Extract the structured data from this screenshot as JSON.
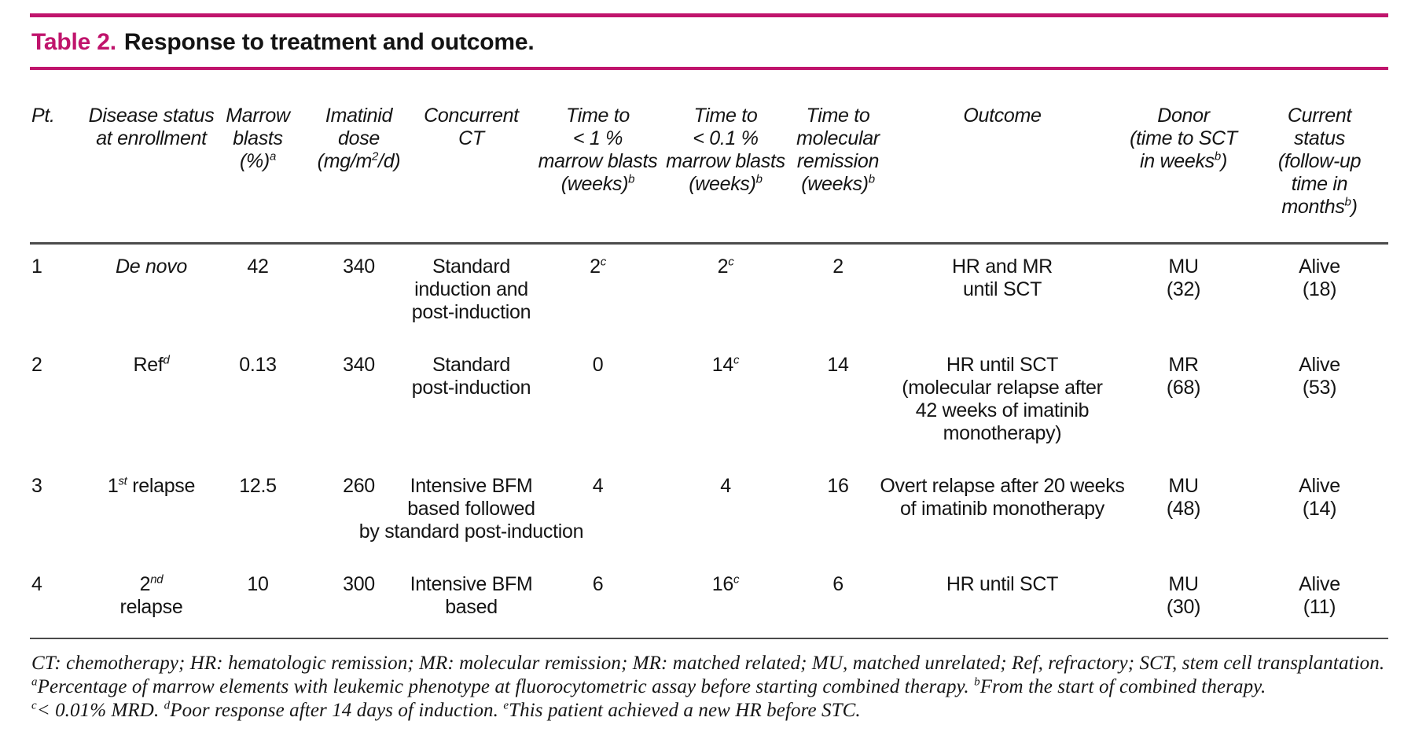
{
  "accent_color": "#c0146c",
  "rule_color": "#4b4b4b",
  "title": {
    "label": "Table 2.",
    "text": "Response to treatment and outcome."
  },
  "table": {
    "columns": [
      {
        "header": "Pt.",
        "align": "left"
      },
      {
        "header": "Disease status\nat enrollment"
      },
      {
        "header": "Marrow\nblasts\n(%)^a^"
      },
      {
        "header": "Imatinid\ndose\n(mg/m^2^/d)"
      },
      {
        "header": "Concurrent\nCT"
      },
      {
        "header": "Time to\n< 1 %\nmarrow blasts\n(weeks)^b^"
      },
      {
        "header": "Time to\n< 0.1 %\nmarrow blasts\n(weeks)^b^"
      },
      {
        "header": "Time to\nmolecular\nremission\n(weeks)^b^"
      },
      {
        "header": "Outcome"
      },
      {
        "header": "Donor\n(time to SCT\nin weeks^b^)"
      },
      {
        "header": "Current\nstatus\n(follow-up\ntime in\nmonths^b^)"
      }
    ],
    "rows": [
      [
        "1",
        {
          "text": "De novo",
          "italic": true
        },
        "42",
        "340",
        "Standard\ninduction and\npost-induction",
        "2^c^",
        "2^c^",
        "2",
        "HR and MR\nuntil SCT",
        "MU\n(32)",
        "Alive\n(18)"
      ],
      [
        "2",
        "Ref^d^",
        "0.13",
        "340",
        "Standard\npost-induction",
        "0",
        "14^c^",
        "14",
        "HR until SCT\n(molecular relapse after\n42 weeks of imatinib\nmonotherapy)",
        "MR\n(68)",
        "Alive\n(53)"
      ],
      [
        "3",
        "1^st^ relapse",
        "12.5",
        "260",
        "Intensive BFM\nbased followed\nby standard post-induction",
        "4",
        "4",
        "16",
        "Overt relapse after 20 weeks\nof imatinib monotherapy",
        "MU\n(48)",
        "Alive\n(14)"
      ],
      [
        "4",
        "2^nd^\nrelapse",
        "10",
        "300",
        "Intensive BFM\nbased",
        "6",
        "16^c^",
        "6",
        "HR until SCT",
        "MU\n(30)",
        "Alive\n(11)"
      ]
    ]
  },
  "footnotes": [
    "CT: chemotherapy; HR: hematologic remission; MR: molecular remission; MR: matched related; MU, matched unrelated; Ref, refractory; SCT, stem cell transplantation.",
    "^a^Percentage of marrow elements with leukemic phenotype at fluorocytometric assay before starting combined therapy. ^b^From the start of combined therapy.",
    "^c^< 0.01% MRD. ^d^Poor response after 14 days of induction. ^e^This patient achieved a new HR before STC."
  ]
}
